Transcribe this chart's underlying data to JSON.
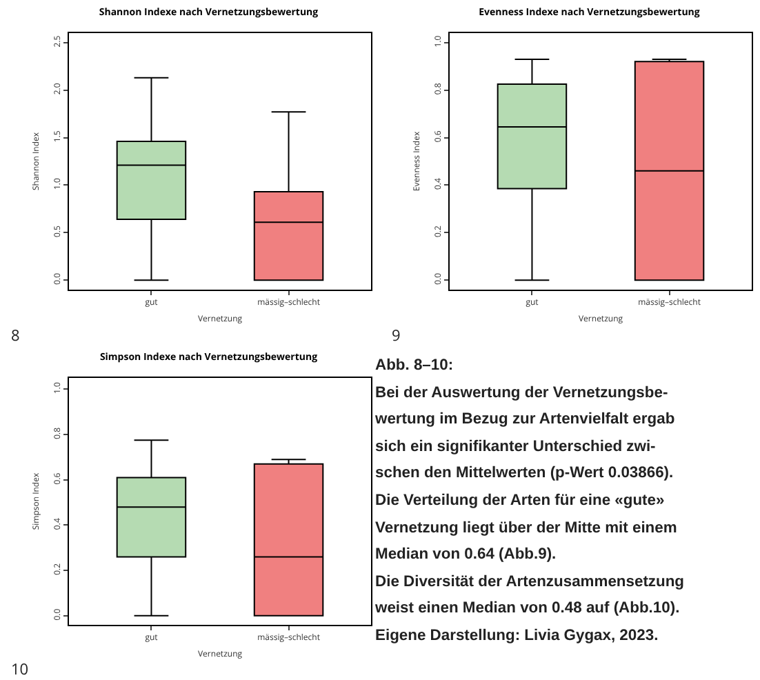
{
  "chart_data": [
    {
      "type": "box",
      "title": "Shannon Indexe nach Vernetzungsbewertung",
      "xlabel": "Vernetzung",
      "ylabel": "Shannon Index",
      "categories": [
        "gut",
        "mässig–schlecht"
      ],
      "colors": [
        "#b5dbb2",
        "#f08080"
      ],
      "boxes": [
        {
          "low": 0,
          "q1": 0.64,
          "median": 1.21,
          "q3": 1.46,
          "high": 2.13
        },
        {
          "low": 0,
          "q1": 0,
          "median": 0.61,
          "q3": 0.93,
          "high": 1.77
        }
      ],
      "ylim": [
        -0.1,
        2.6
      ],
      "yticks": [
        {
          "value": 0,
          "label": "0.0"
        },
        {
          "value": 0.5,
          "label": "0.5"
        },
        {
          "value": 1,
          "label": "1.0"
        },
        {
          "value": 1.5,
          "label": "1.5"
        },
        {
          "value": 2,
          "label": "2.0"
        },
        {
          "value": 2.5,
          "label": "2.5"
        }
      ],
      "annotations": [
        "8"
      ]
    },
    {
      "type": "box",
      "title": "Evenness Indexe nach Vernetzungsbewertung",
      "xlabel": "Vernetzung",
      "ylabel": "Evenness Index",
      "categories": [
        "gut",
        "mässig–schlecht"
      ],
      "colors": [
        "#b5dbb2",
        "#f08080"
      ],
      "boxes": [
        {
          "low": 0,
          "q1": 0.385,
          "median": 0.645,
          "q3": 0.825,
          "high": 0.93
        },
        {
          "low": 0,
          "q1": 0,
          "median": 0.46,
          "q3": 0.92,
          "high": 0.93
        }
      ],
      "ylim": [
        -0.04,
        1.04
      ],
      "yticks": [
        {
          "value": 0,
          "label": "0.0"
        },
        {
          "value": 0.2,
          "label": "0.2"
        },
        {
          "value": 0.4,
          "label": "0.4"
        },
        {
          "value": 0.6,
          "label": "0.6"
        },
        {
          "value": 0.8,
          "label": "0.8"
        },
        {
          "value": 1,
          "label": "1.0"
        }
      ],
      "annotations": [
        "9"
      ]
    },
    {
      "type": "box",
      "title": "Simpson Indexe nach Vernetzungsbewertung",
      "xlabel": "Vernetzung",
      "ylabel": "Simpson Index",
      "categories": [
        "gut",
        "mässig–schlecht"
      ],
      "colors": [
        "#b5dbb2",
        "#f08080"
      ],
      "boxes": [
        {
          "low": 0,
          "q1": 0.26,
          "median": 0.48,
          "q3": 0.61,
          "high": 0.775
        },
        {
          "low": 0,
          "q1": 0,
          "median": 0.26,
          "q3": 0.67,
          "high": 0.69
        }
      ],
      "ylim": [
        -0.04,
        1.05
      ],
      "yticks": [
        {
          "value": 0,
          "label": "0.0"
        },
        {
          "value": 0.2,
          "label": "0.2"
        },
        {
          "value": 0.4,
          "label": "0.4"
        },
        {
          "value": 0.6,
          "label": "0.6"
        },
        {
          "value": 0.8,
          "label": "0.8"
        },
        {
          "value": 1,
          "label": "1.0"
        }
      ],
      "annotations": [
        "10"
      ]
    },
    {
      "type": "other",
      "title": "Abb. 8–10:",
      "annotations": [
        "Bei der Auswertung der Vernetzungsbe-",
        "wertung im Bezug zur Artenvielfalt ergab",
        "sich ein signifikanter Unterschied zwi-",
        "schen den Mittelwerten (p-Wert 0.03866).",
        "Die Verteilung der Arten für eine «gute»",
        "Vernetzung liegt über der Mitte mit einem",
        "Median von 0.64 (Abb.9).",
        "Die Diversität der Artenzusammensetzung",
        "weist einen Median von 0.48 auf (Abb.10).",
        "Eigene Darstellung: Livia Gygax, 2023."
      ]
    }
  ]
}
